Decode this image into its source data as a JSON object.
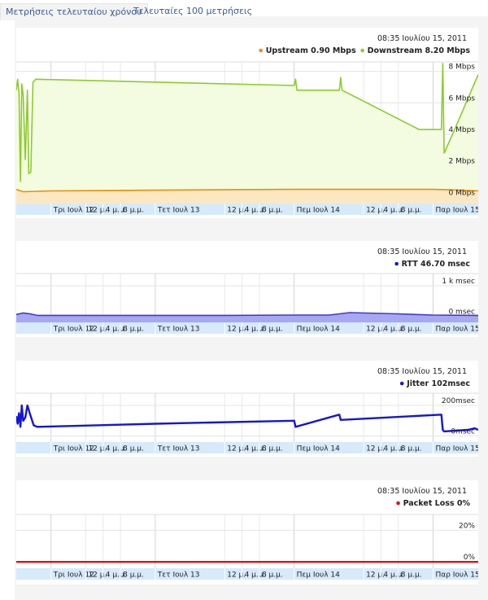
{
  "tabs": [
    {
      "label": "Μετρήσεις τελευταίου χρόνου",
      "active": true
    },
    {
      "label": "Τελευταίες 100 μετρήσεις",
      "active": false
    }
  ],
  "chart_data": [
    {
      "type": "area",
      "timestamp": "08:35 Ιουλίου 15, 2011",
      "legend": [
        {
          "label": "Upstream 0.90 Mbps",
          "color": "#f08c00"
        },
        {
          "label": "Downstream 8.20 Mbps",
          "color": "#8ccc2a"
        }
      ],
      "y_ticks": [
        {
          "v": 8,
          "label": "8 Mbps"
        },
        {
          "v": 6,
          "label": "6 Mbps"
        },
        {
          "v": 4,
          "label": "4 Mbps"
        },
        {
          "v": 2,
          "label": "2 Mbps"
        },
        {
          "v": 0,
          "label": "0 Mbps"
        }
      ],
      "ylim": [
        -0.4,
        8.6
      ],
      "x_ticks": [
        {
          "t": 0.5,
          "label": "Τρι Ιουλ 12",
          "major": true
        },
        {
          "t": 1.0,
          "label": "12 μ.",
          "major": false
        },
        {
          "t": 1.25,
          "label": "4 μ.μ.",
          "major": false
        },
        {
          "t": 1.5,
          "label": "8 μ.μ.",
          "major": false
        },
        {
          "t": 2.0,
          "label": "Τετ Ιουλ 13",
          "major": true
        },
        {
          "t": 3.0,
          "label": "12 μ.",
          "major": false
        },
        {
          "t": 3.25,
          "label": "4 μ.μ.",
          "major": false
        },
        {
          "t": 3.5,
          "label": "8 μ.μ.",
          "major": false
        },
        {
          "t": 4.0,
          "label": "Πεμ Ιουλ 14",
          "major": true
        },
        {
          "t": 5.0,
          "label": "12 μ.",
          "major": false
        },
        {
          "t": 5.25,
          "label": "4 μ.μ.",
          "major": false
        },
        {
          "t": 5.5,
          "label": "8 μ.μ.",
          "major": false
        },
        {
          "t": 6.0,
          "label": "Παρ Ιουλ 15",
          "major": true
        }
      ],
      "series": [
        {
          "name": "Downstream",
          "color": "#8ccc2a",
          "fill": "#f3fbe0",
          "points": [
            [
              0,
              6.8
            ],
            [
              0.02,
              7.5
            ],
            [
              0.04,
              6.6
            ],
            [
              0.06,
              1.0
            ],
            [
              0.08,
              7.2
            ],
            [
              0.1,
              6.5
            ],
            [
              0.13,
              2.4
            ],
            [
              0.16,
              6.8
            ],
            [
              0.18,
              1.5
            ],
            [
              0.21,
              1.6
            ],
            [
              0.24,
              7.3
            ],
            [
              0.28,
              7.5
            ],
            [
              4.0,
              7.1
            ],
            [
              4.02,
              7.5
            ],
            [
              4.04,
              6.8
            ],
            [
              4.65,
              6.8
            ],
            [
              4.67,
              7.6
            ],
            [
              4.69,
              6.8
            ],
            [
              5.8,
              4.3
            ],
            [
              6.12,
              4.3
            ],
            [
              6.14,
              8.5
            ],
            [
              6.16,
              2.8
            ],
            [
              6.3,
              4.2
            ],
            [
              6.65,
              7.8
            ]
          ]
        },
        {
          "name": "Upstream",
          "color": "#f08c00",
          "fill": "#fbe8c2",
          "points": [
            [
              0,
              0.5
            ],
            [
              0.1,
              0.35
            ],
            [
              0.5,
              0.4
            ],
            [
              2.0,
              0.45
            ],
            [
              4.0,
              0.5
            ],
            [
              6.0,
              0.5
            ],
            [
              6.4,
              0.45
            ],
            [
              6.65,
              0.4
            ]
          ]
        }
      ]
    },
    {
      "type": "area",
      "timestamp": "08:35 Ιουλίου 15, 2011",
      "legend": [
        {
          "label": "RTT 46.70 msec",
          "color": "#1919d2"
        }
      ],
      "y_ticks": [
        {
          "v": 1000,
          "label": "1 k msec"
        },
        {
          "v": 0,
          "label": "0 msec"
        }
      ],
      "ylim": [
        -200,
        1400
      ],
      "x_ticks": [
        {
          "t": 0.5,
          "label": "Τρι Ιουλ 12",
          "major": true
        },
        {
          "t": 1.0,
          "label": "12 μ.",
          "major": false
        },
        {
          "t": 1.25,
          "label": "4 μ.μ.",
          "major": false
        },
        {
          "t": 1.5,
          "label": "8 μ.μ.",
          "major": false
        },
        {
          "t": 2.0,
          "label": "Τετ Ιουλ 13",
          "major": true
        },
        {
          "t": 3.0,
          "label": "12 μ.",
          "major": false
        },
        {
          "t": 3.25,
          "label": "4 μ.μ.",
          "major": false
        },
        {
          "t": 3.5,
          "label": "8 μ.μ.",
          "major": false
        },
        {
          "t": 4.0,
          "label": "Πεμ Ιουλ 14",
          "major": true
        },
        {
          "t": 5.0,
          "label": "12 μ.",
          "major": false
        },
        {
          "t": 5.25,
          "label": "4 μ.μ.",
          "major": false
        },
        {
          "t": 5.5,
          "label": "8 μ.μ.",
          "major": false
        },
        {
          "t": 6.0,
          "label": "Παρ Ιουλ 15",
          "major": true
        }
      ],
      "series": [
        {
          "name": "RTT",
          "color": "#3a3ad0",
          "fill": "#a8a8f2",
          "points": [
            [
              0,
              60
            ],
            [
              0.1,
              110
            ],
            [
              0.2,
              80
            ],
            [
              0.3,
              30
            ],
            [
              1,
              30
            ],
            [
              2,
              30
            ],
            [
              3,
              30
            ],
            [
              4,
              40
            ],
            [
              4.5,
              40
            ],
            [
              4.8,
              120
            ],
            [
              5.5,
              80
            ],
            [
              6.0,
              40
            ],
            [
              6.65,
              30
            ]
          ]
        }
      ]
    },
    {
      "type": "line",
      "timestamp": "08:35 Ιουλίου 15, 2011",
      "legend": [
        {
          "label": "Jitter 102msec",
          "color": "#1919d2"
        }
      ],
      "y_ticks": [
        {
          "v": 200,
          "label": "200msec"
        },
        {
          "v": 0,
          "label": "0msec"
        }
      ],
      "ylim": [
        -40,
        280
      ],
      "x_ticks": [
        {
          "t": 0.5,
          "label": "Τρι Ιουλ 12",
          "major": true
        },
        {
          "t": 1.0,
          "label": "12 μ.",
          "major": false
        },
        {
          "t": 1.25,
          "label": "4 μ.μ.",
          "major": false
        },
        {
          "t": 1.5,
          "label": "8 μ.μ.",
          "major": false
        },
        {
          "t": 2.0,
          "label": "Τετ Ιουλ 13",
          "major": true
        },
        {
          "t": 3.0,
          "label": "12 μ.",
          "major": false
        },
        {
          "t": 3.25,
          "label": "4 μ.μ.",
          "major": false
        },
        {
          "t": 3.5,
          "label": "8 μ.μ.",
          "major": false
        },
        {
          "t": 4.0,
          "label": "Πεμ Ιουλ 14",
          "major": true
        },
        {
          "t": 5.0,
          "label": "12 μ.",
          "major": false
        },
        {
          "t": 5.25,
          "label": "4 μ.μ.",
          "major": false
        },
        {
          "t": 5.5,
          "label": "8 μ.μ.",
          "major": false
        },
        {
          "t": 6.0,
          "label": "Παρ Ιουλ 15",
          "major": true
        }
      ],
      "series": [
        {
          "name": "Jitter",
          "color": "#1515d8",
          "points": [
            [
              0,
              130
            ],
            [
              0.02,
              80
            ],
            [
              0.04,
              150
            ],
            [
              0.06,
              60
            ],
            [
              0.08,
              200
            ],
            [
              0.1,
              100
            ],
            [
              0.13,
              120
            ],
            [
              0.16,
              200
            ],
            [
              0.2,
              140
            ],
            [
              0.25,
              70
            ],
            [
              0.3,
              60
            ],
            [
              2.0,
              80
            ],
            [
              4.0,
              100
            ],
            [
              4.02,
              60
            ],
            [
              4.65,
              140
            ],
            [
              4.67,
              105
            ],
            [
              6.12,
              140
            ],
            [
              6.14,
              40
            ],
            [
              6.16,
              30
            ],
            [
              6.5,
              40
            ],
            [
              6.6,
              50
            ],
            [
              6.65,
              40
            ]
          ]
        }
      ]
    },
    {
      "type": "line",
      "timestamp": "08:35 Ιουλίου 15, 2011",
      "legend": [
        {
          "label": "Packet Loss 0%",
          "color": "#e01010"
        }
      ],
      "y_ticks": [
        {
          "v": 20,
          "label": "20%"
        },
        {
          "v": 0,
          "label": "0%"
        }
      ],
      "ylim": [
        -4,
        30
      ],
      "x_ticks": [
        {
          "t": 0.5,
          "label": "Τρι Ιουλ 12",
          "major": true
        },
        {
          "t": 1.0,
          "label": "12 μ.",
          "major": false
        },
        {
          "t": 1.25,
          "label": "4 μ.μ.",
          "major": false
        },
        {
          "t": 1.5,
          "label": "8 μ.μ.",
          "major": false
        },
        {
          "t": 2.0,
          "label": "Τετ Ιουλ 13",
          "major": true
        },
        {
          "t": 3.0,
          "label": "12 μ.",
          "major": false
        },
        {
          "t": 3.25,
          "label": "4 μ.μ.",
          "major": false
        },
        {
          "t": 3.5,
          "label": "8 μ.μ.",
          "major": false
        },
        {
          "t": 4.0,
          "label": "Πεμ Ιουλ 14",
          "major": true
        },
        {
          "t": 5.0,
          "label": "12 μ.",
          "major": false
        },
        {
          "t": 5.25,
          "label": "4 μ.μ.",
          "major": false
        },
        {
          "t": 5.5,
          "label": "8 μ.μ.",
          "major": false
        },
        {
          "t": 6.0,
          "label": "Παρ Ιουλ 15",
          "major": true
        }
      ],
      "series": [
        {
          "name": "Packet Loss",
          "color": "#e01010",
          "points": [
            [
              0,
              0
            ],
            [
              6.65,
              0
            ]
          ]
        }
      ]
    }
  ]
}
